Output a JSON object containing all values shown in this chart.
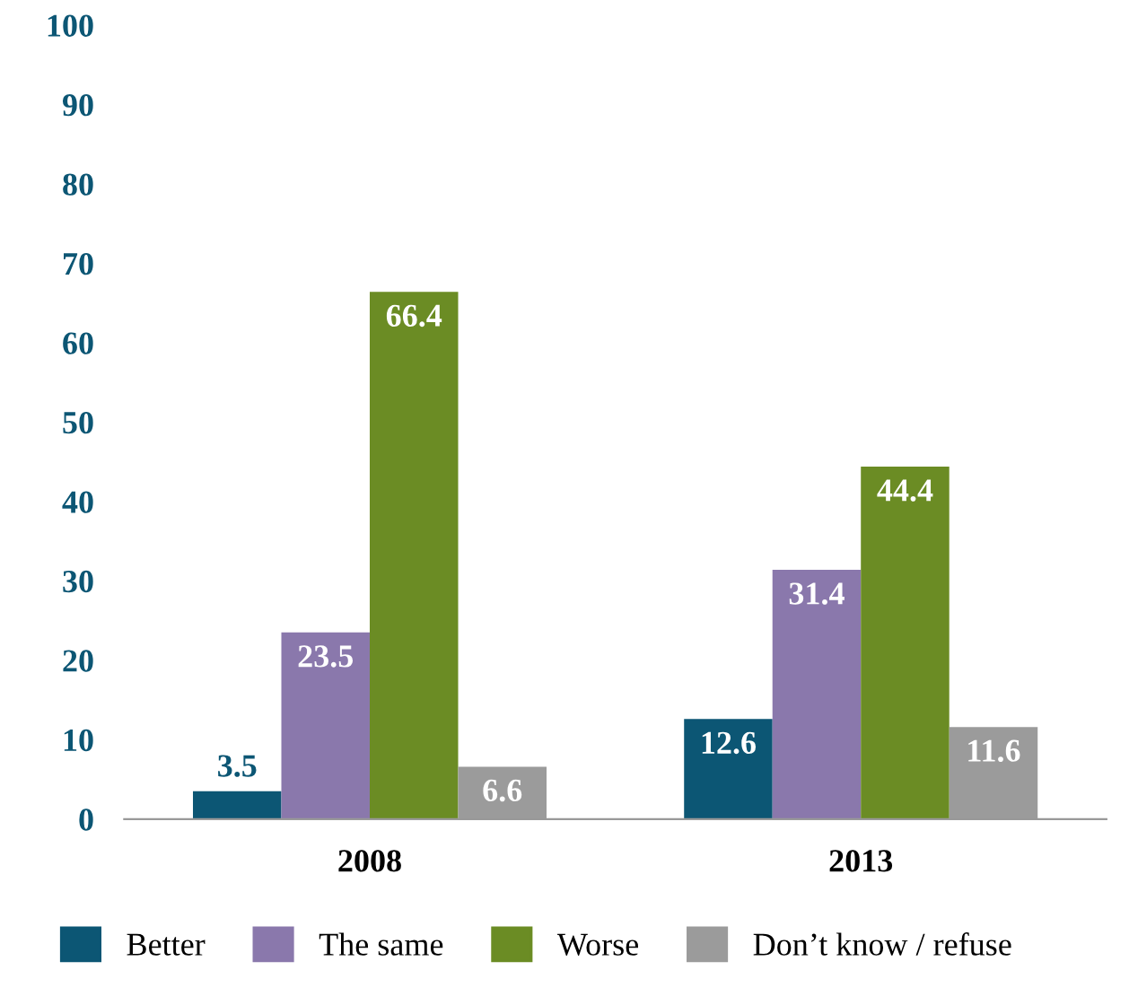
{
  "chart_data": {
    "type": "bar",
    "categories": [
      "2008",
      "2013"
    ],
    "series": [
      {
        "name": "Better",
        "color": "#0c5674",
        "values": [
          3.5,
          12.6
        ]
      },
      {
        "name": "The same",
        "color": "#8a78ac",
        "values": [
          23.5,
          31.4
        ]
      },
      {
        "name": "Worse",
        "color": "#6b8c24",
        "values": [
          66.4,
          44.4
        ]
      },
      {
        "name": "Don’t know / refuse",
        "color": "#9b9b9b",
        "values": [
          6.6,
          11.6
        ]
      }
    ],
    "ylim": [
      0,
      100
    ],
    "yticks": [
      0,
      10,
      20,
      30,
      40,
      50,
      60,
      70,
      80,
      90,
      100
    ],
    "data_labels": true,
    "grid": false,
    "legend": "bottom"
  }
}
